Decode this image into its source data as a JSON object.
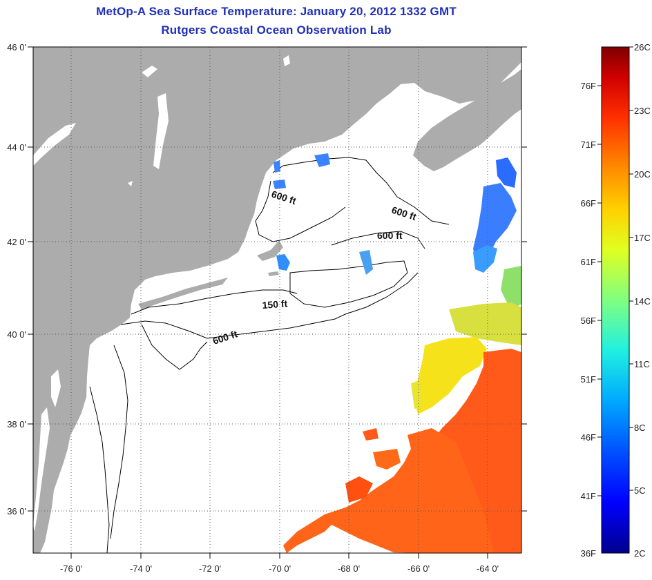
{
  "title": {
    "line1": "MetOp-A Sea Surface Temperature:  January 20, 2012 1332 GMT",
    "line2": "Rutgers Coastal Ocean Observation Lab"
  },
  "map": {
    "lat_labels": [
      "46 0'",
      "44 0'",
      "42 0'",
      "40 0'",
      "38 0'",
      "36 0'"
    ],
    "lon_labels": [
      "-76 0'",
      "-74 0'",
      "-72 0'",
      "-70 0'",
      "-68 0'",
      "-66 0'",
      "-64 0'"
    ],
    "contour_labels": [
      "600 ft",
      "600 ft",
      "600 ft",
      "150 ft",
      "600 ft"
    ],
    "colors": {
      "land": "#acacac",
      "ocean": "#ffffff",
      "grid": "#555555"
    }
  },
  "colorbar": {
    "fahrenheit_labels": [
      "36F",
      "41F",
      "46F",
      "51F",
      "56F",
      "61F",
      "66F",
      "71F",
      "76F"
    ],
    "celsius_labels": [
      "2C",
      "5C",
      "8C",
      "11C",
      "14C",
      "17C",
      "20C",
      "23C",
      "26C"
    ],
    "colors": [
      "#00008f",
      "#0000ff",
      "#0060ff",
      "#00c0ff",
      "#40ffc0",
      "#a0ff60",
      "#ffff00",
      "#ffa000",
      "#ff4000",
      "#d00000",
      "#800000"
    ]
  }
}
